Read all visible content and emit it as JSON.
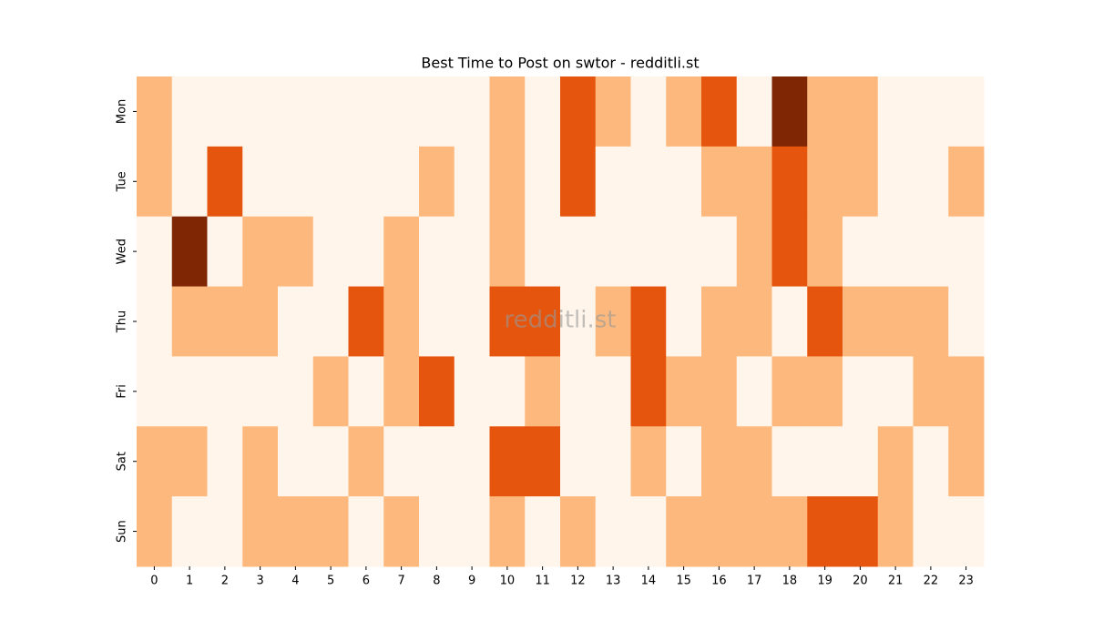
{
  "chart_data": {
    "type": "heatmap",
    "title": "Best Time to Post on swtor - redditli.st",
    "watermark": "redditli.st",
    "categories": [
      "0",
      "1",
      "2",
      "3",
      "4",
      "5",
      "6",
      "7",
      "8",
      "9",
      "10",
      "11",
      "12",
      "13",
      "14",
      "15",
      "16",
      "17",
      "18",
      "19",
      "20",
      "21",
      "22",
      "23"
    ],
    "y_categories": [
      "Mon",
      "Tue",
      "Wed",
      "Thu",
      "Fri",
      "Sat",
      "Sun"
    ],
    "values": [
      [
        1,
        0,
        0,
        0,
        0,
        0,
        0,
        0,
        0,
        0,
        1,
        0,
        2,
        1,
        0,
        1,
        2,
        0,
        3,
        1,
        1,
        0,
        0,
        0
      ],
      [
        1,
        0,
        2,
        0,
        0,
        0,
        0,
        0,
        1,
        0,
        1,
        0,
        2,
        0,
        0,
        0,
        1,
        1,
        2,
        1,
        1,
        0,
        0,
        1
      ],
      [
        0,
        3,
        0,
        1,
        1,
        0,
        0,
        1,
        0,
        0,
        1,
        0,
        0,
        0,
        0,
        0,
        0,
        1,
        2,
        1,
        0,
        0,
        0,
        0
      ],
      [
        0,
        1,
        1,
        1,
        0,
        0,
        2,
        1,
        0,
        0,
        2,
        2,
        0,
        1,
        2,
        0,
        1,
        1,
        0,
        2,
        1,
        1,
        1,
        0
      ],
      [
        0,
        0,
        0,
        0,
        0,
        1,
        0,
        1,
        2,
        0,
        0,
        1,
        0,
        0,
        2,
        1,
        1,
        0,
        1,
        1,
        0,
        0,
        1,
        1
      ],
      [
        1,
        1,
        0,
        1,
        0,
        0,
        1,
        0,
        0,
        0,
        2,
        2,
        0,
        0,
        1,
        0,
        1,
        1,
        0,
        0,
        0,
        1,
        0,
        1
      ],
      [
        1,
        0,
        0,
        1,
        1,
        1,
        0,
        1,
        0,
        0,
        1,
        0,
        1,
        0,
        0,
        1,
        1,
        1,
        1,
        2,
        2,
        1,
        0,
        0
      ]
    ],
    "colors": [
      "#fff5eb",
      "#fdb97d",
      "#e6550d",
      "#7f2704"
    ]
  }
}
